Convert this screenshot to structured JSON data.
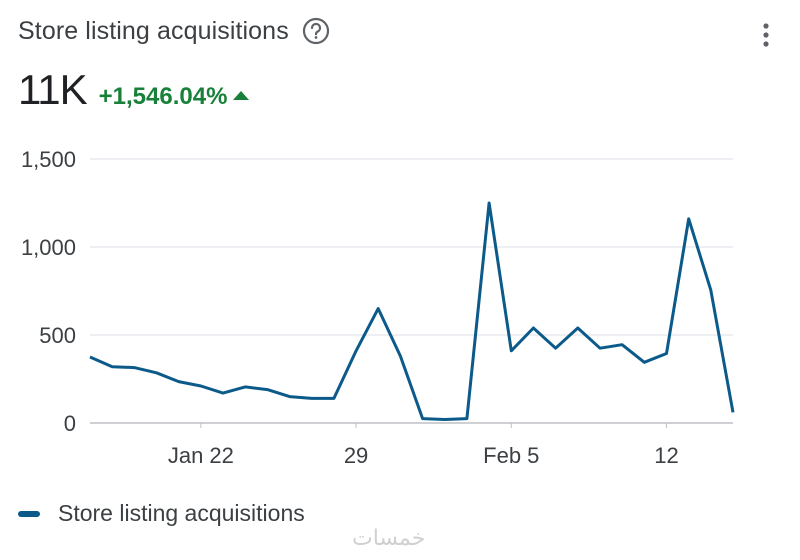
{
  "header": {
    "title": "Store listing acquisitions",
    "metric_value": "11K",
    "metric_change": "+1,546.04%",
    "accent_color": "#188038",
    "help_icon": "help-circle-icon",
    "menu_icon": "more-vert-icon"
  },
  "chart_data": {
    "type": "line",
    "title": "",
    "xlabel": "",
    "ylabel": "",
    "x_tick_labels": [
      "Jan 22",
      "29",
      "Feb 5",
      "12"
    ],
    "y_tick_labels": [
      "1,500",
      "1,000",
      "500",
      "0"
    ],
    "y_ticks": [
      1500,
      1000,
      500,
      0
    ],
    "ylim": [
      0,
      1500
    ],
    "grid": true,
    "legend_position": "bottom-left",
    "x": [
      "Jan 17",
      "Jan 18",
      "Jan 19",
      "Jan 20",
      "Jan 21",
      "Jan 22",
      "Jan 23",
      "Jan 24",
      "Jan 25",
      "Jan 26",
      "Jan 27",
      "Jan 28",
      "Jan 29",
      "Jan 30",
      "Jan 31",
      "Feb 1",
      "Feb 2",
      "Feb 3",
      "Feb 4",
      "Feb 5",
      "Feb 6",
      "Feb 7",
      "Feb 8",
      "Feb 9",
      "Feb 10",
      "Feb 11",
      "Feb 12",
      "Feb 13",
      "Feb 14"
    ],
    "series": [
      {
        "name": "Store listing acquisitions",
        "color": "#0b5a8a",
        "values": [
          375,
          320,
          315,
          285,
          235,
          210,
          170,
          205,
          190,
          150,
          140,
          140,
          410,
          650,
          380,
          25,
          20,
          25,
          1250,
          410,
          540,
          425,
          540,
          425,
          445,
          345,
          395,
          1160,
          755
        ]
      }
    ],
    "end_value": 60
  },
  "legend": {
    "label": "Store listing acquisitions"
  },
  "watermark": "خمسات"
}
